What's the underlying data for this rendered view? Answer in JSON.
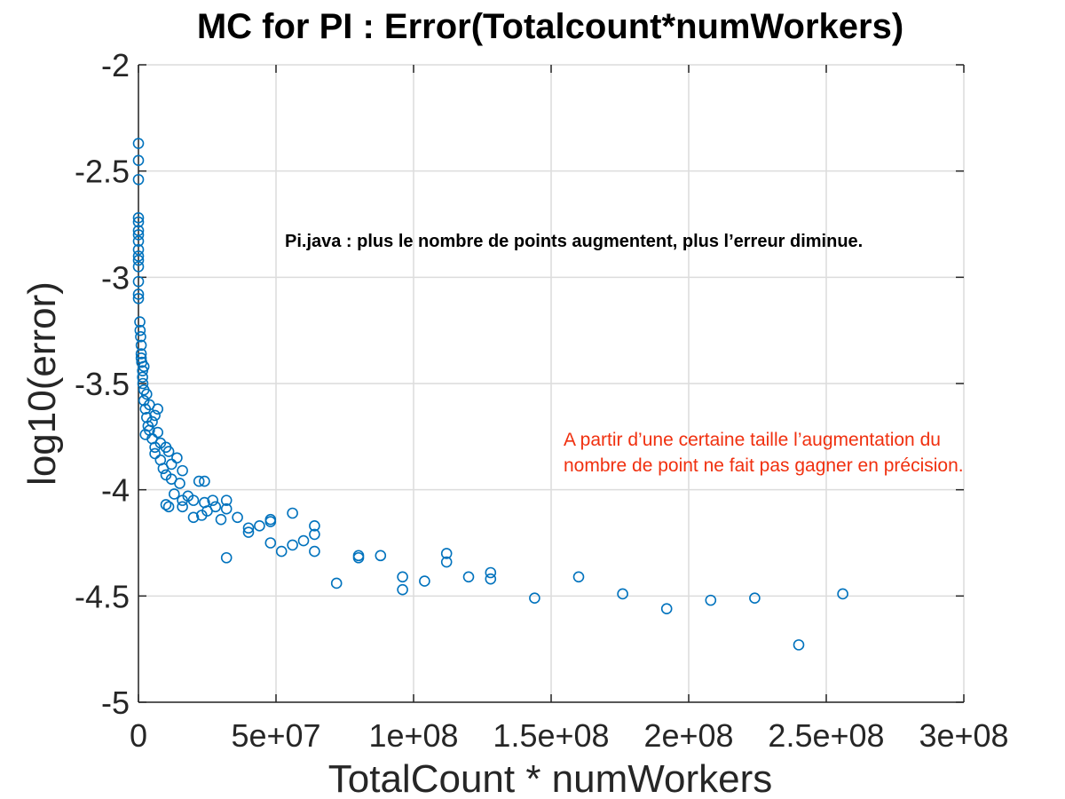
{
  "chart_data": {
    "type": "scatter",
    "title": "MC for PI : Error(Totalcount*numWorkers)",
    "xlabel": "TotalCount * numWorkers",
    "ylabel": "log10(error)",
    "xlim": [
      0,
      300000000
    ],
    "ylim": [
      -5,
      -2
    ],
    "xticks": [
      0,
      50000000,
      100000000,
      150000000,
      200000000,
      250000000,
      300000000
    ],
    "xtick_labels": [
      "0",
      "5e+07",
      "1e+08",
      "1.5e+08",
      "2e+08",
      "2.5e+08",
      "3e+08"
    ],
    "yticks": [
      -2,
      -2.5,
      -3,
      -3.5,
      -4,
      -4.5,
      -5
    ],
    "ytick_labels": [
      "-2",
      "-2.5",
      "-3",
      "-3.5",
      "-4",
      "-4.5",
      "-5"
    ],
    "grid": true,
    "marker": "circle",
    "color": "#0072bd",
    "annotations": [
      {
        "text": "Pi.java : plus le nombre de points augmentent, plus l’erreur diminue.",
        "color": "#000000"
      },
      {
        "text": " A partir d’une certaine taille l’augmentation du nombre de point ne fait pas gagner en précision.",
        "color": "#f0300f"
      }
    ],
    "points": [
      [
        0,
        -2.37
      ],
      [
        0,
        -2.45
      ],
      [
        0,
        -2.54
      ],
      [
        0,
        -2.72
      ],
      [
        0,
        -2.74
      ],
      [
        0,
        -2.78
      ],
      [
        0,
        -2.8
      ],
      [
        0,
        -2.83
      ],
      [
        0,
        -2.87
      ],
      [
        0,
        -2.9
      ],
      [
        0,
        -2.92
      ],
      [
        0,
        -2.95
      ],
      [
        0,
        -3.02
      ],
      [
        0,
        -3.08
      ],
      [
        0,
        -3.1
      ],
      [
        500000,
        -3.21
      ],
      [
        600000,
        -3.25
      ],
      [
        800000,
        -3.28
      ],
      [
        1000000,
        -3.32
      ],
      [
        1000000,
        -3.36
      ],
      [
        1200000,
        -3.4
      ],
      [
        1500000,
        -3.44
      ],
      [
        1500000,
        -3.47
      ],
      [
        1600000,
        -3.5
      ],
      [
        2000000,
        -3.53
      ],
      [
        1000000,
        -3.38
      ],
      [
        2000000,
        -3.42
      ],
      [
        2000000,
        -3.58
      ],
      [
        2500000,
        -3.62
      ],
      [
        3000000,
        -3.55
      ],
      [
        3000000,
        -3.66
      ],
      [
        3500000,
        -3.7
      ],
      [
        2500000,
        -3.74
      ],
      [
        4000000,
        -3.6
      ],
      [
        4000000,
        -3.72
      ],
      [
        5000000,
        -3.68
      ],
      [
        5000000,
        -3.76
      ],
      [
        6000000,
        -3.65
      ],
      [
        6000000,
        -3.8
      ],
      [
        6000000,
        -3.83
      ],
      [
        7000000,
        -3.62
      ],
      [
        7000000,
        -3.73
      ],
      [
        8000000,
        -3.78
      ],
      [
        8000000,
        -3.86
      ],
      [
        9000000,
        -3.9
      ],
      [
        10000000,
        -3.8
      ],
      [
        10000000,
        -3.93
      ],
      [
        11000000,
        -3.82
      ],
      [
        12000000,
        -3.95
      ],
      [
        12000000,
        -3.88
      ],
      [
        13000000,
        -4.02
      ],
      [
        14000000,
        -3.85
      ],
      [
        15000000,
        -3.97
      ],
      [
        16000000,
        -3.91
      ],
      [
        16000000,
        -4.05
      ],
      [
        10000000,
        -4.07
      ],
      [
        11000000,
        -4.08
      ],
      [
        16000000,
        -4.08
      ],
      [
        18000000,
        -4.03
      ],
      [
        20000000,
        -4.05
      ],
      [
        20000000,
        -4.13
      ],
      [
        22000000,
        -3.96
      ],
      [
        23000000,
        -4.12
      ],
      [
        24000000,
        -3.96
      ],
      [
        24000000,
        -4.06
      ],
      [
        25000000,
        -4.1
      ],
      [
        27000000,
        -4.05
      ],
      [
        28000000,
        -4.08
      ],
      [
        30000000,
        -4.14
      ],
      [
        32000000,
        -4.09
      ],
      [
        32000000,
        -4.05
      ],
      [
        32000000,
        -4.32
      ],
      [
        36000000,
        -4.13
      ],
      [
        40000000,
        -4.18
      ],
      [
        40000000,
        -4.2
      ],
      [
        44000000,
        -4.17
      ],
      [
        48000000,
        -4.14
      ],
      [
        48000000,
        -4.15
      ],
      [
        48000000,
        -4.25
      ],
      [
        52000000,
        -4.29
      ],
      [
        56000000,
        -4.11
      ],
      [
        56000000,
        -4.26
      ],
      [
        60000000,
        -4.24
      ],
      [
        64000000,
        -4.17
      ],
      [
        64000000,
        -4.21
      ],
      [
        64000000,
        -4.29
      ],
      [
        72000000,
        -4.44
      ],
      [
        80000000,
        -4.31
      ],
      [
        80000000,
        -4.32
      ],
      [
        88000000,
        -4.31
      ],
      [
        96000000,
        -4.41
      ],
      [
        96000000,
        -4.47
      ],
      [
        104000000,
        -4.43
      ],
      [
        112000000,
        -4.3
      ],
      [
        112000000,
        -4.34
      ],
      [
        120000000,
        -4.41
      ],
      [
        128000000,
        -4.39
      ],
      [
        128000000,
        -4.42
      ],
      [
        144000000,
        -4.51
      ],
      [
        160000000,
        -4.41
      ],
      [
        176000000,
        -4.49
      ],
      [
        192000000,
        -4.56
      ],
      [
        208000000,
        -4.52
      ],
      [
        224000000,
        -4.51
      ],
      [
        240000000,
        -4.73
      ],
      [
        256000000,
        -4.49
      ]
    ]
  }
}
